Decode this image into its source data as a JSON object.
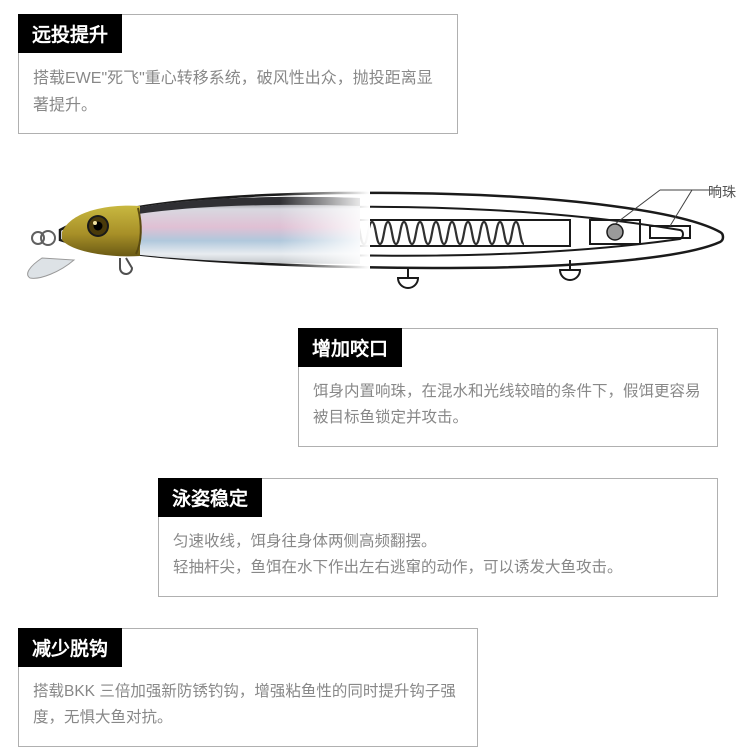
{
  "features": [
    {
      "title": "远投提升",
      "body": "搭载EWE\"死飞\"重心转移系统，破风性出众，抛投距离显著提升。"
    },
    {
      "title": "增加咬口",
      "body": "饵身内置响珠，在混水和光线较暗的条件下，假饵更容易被目标鱼锁定并攻击。"
    },
    {
      "title": "泳姿稳定",
      "body": "匀速收线，饵身往身体两侧高频翻摆。\n轻抽杆尖，鱼饵在水下作出左右逃窜的动作，可以诱发大鱼攻击。"
    },
    {
      "title": "减少脱钩",
      "body": "搭载BKK 三倍加强新防锈钓钩，增强粘鱼性的同时提升钩子强度，无惧大鱼对抗。"
    }
  ],
  "callout": {
    "label": "响珠"
  },
  "colors": {
    "header_bg": "#000000",
    "header_text": "#ffffff",
    "body_text": "#888888",
    "border": "#b0b0b0",
    "lure_head_top": "#b8a030",
    "lure_head_bottom": "#7a6818",
    "lure_eye": "#1a1a1a",
    "lure_body_highlight": "#e8e8f0",
    "lure_body_pink": "#d8b8c8",
    "lure_body_blue": "#a8c0d8",
    "outline": "#1a1a1a",
    "spring": "#303030"
  }
}
